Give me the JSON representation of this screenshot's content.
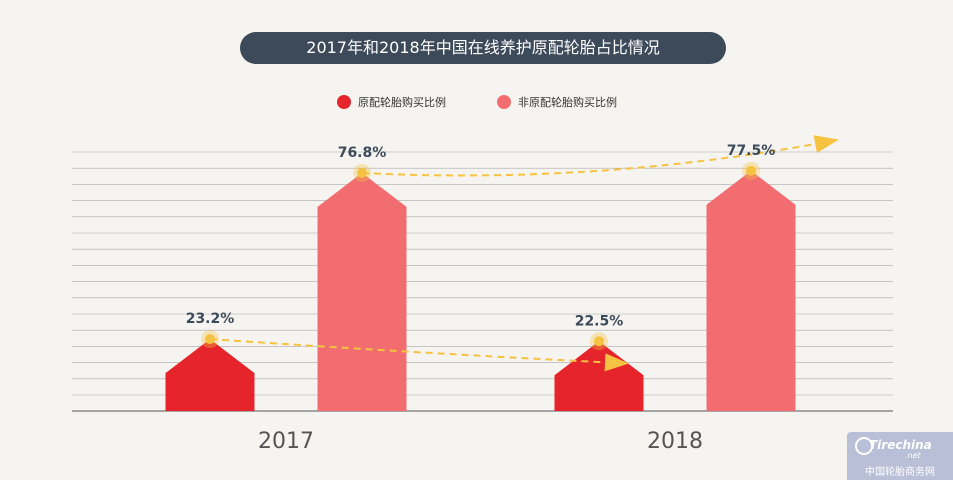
{
  "title": "2017年和2018年中国在线养护原配轮胎占比情况",
  "watermark": {
    "logo": "Tirechina",
    "logo_sub": ".net",
    "text": "中国轮胎商务网"
  },
  "chart_data": {
    "type": "bar",
    "title": "2017年和2018年中国在线养护原配轮胎占比情况",
    "categories": [
      "2017",
      "2018"
    ],
    "series": [
      {
        "name": "原配轮胎购买比例",
        "values": [
          23.2,
          22.5
        ],
        "color": "#e5242b"
      },
      {
        "name": "非原配轮胎购买比例",
        "values": [
          76.8,
          77.5
        ],
        "color": "#f26d70"
      }
    ],
    "data_labels": {
      "2017": [
        "23.2%",
        "76.8%"
      ],
      "2018": [
        "22.5%",
        "77.5%"
      ]
    },
    "ylim": [
      0,
      100
    ],
    "legend_position": "top-center",
    "grid": true,
    "trend_arrows": true,
    "colors": {
      "background": "#f5f4f0",
      "title_bg": "#3d4a5a",
      "label": "#3d4a5a",
      "arrow": "#f5c242",
      "grid": "#8a8a8a"
    }
  }
}
